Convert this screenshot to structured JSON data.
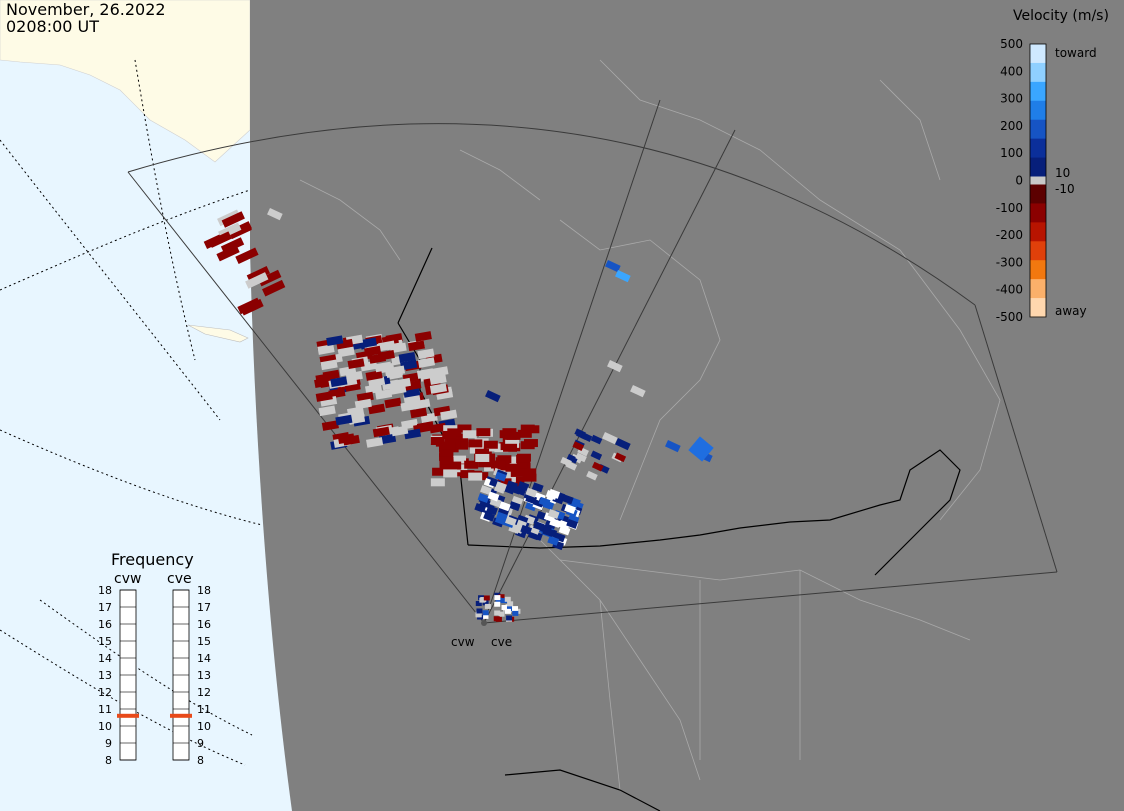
{
  "title": {
    "date": "November, 26.2022",
    "time": "0208:00 UT"
  },
  "velocity_scale": {
    "title": "Velocity (m/s)",
    "ticks": [
      "500",
      "400",
      "300",
      "200",
      "100",
      "0",
      "-100",
      "-200",
      "-300",
      "-400",
      "-500"
    ],
    "small_labels": {
      "pos": "10",
      "neg": "-10"
    },
    "end_labels": {
      "top": "toward",
      "bottom": "away"
    },
    "colors": {
      "toward": [
        "#cfe9ff",
        "#8fd0ff",
        "#3aa6ff",
        "#1f7ee8",
        "#1654c4",
        "#0b2f9a",
        "#071f7a"
      ],
      "near_zero": "#c8c8c8",
      "away": [
        "#5c0000",
        "#8b0000",
        "#b81400",
        "#e0400a",
        "#f2780f",
        "#fbb06a",
        "#ffd7ae"
      ]
    }
  },
  "frequency": {
    "title": "Frequency",
    "unit_hint": "",
    "ticks": [
      "18",
      "17",
      "16",
      "15",
      "14",
      "13",
      "12",
      "11",
      "10",
      "9",
      "8"
    ],
    "radars": [
      {
        "name": "cvw",
        "value_mhz": 10.6
      },
      {
        "name": "cve",
        "value_mhz": 10.6
      }
    ],
    "marker_color": "#e84a1a"
  },
  "radar_sites": [
    {
      "name": "cvw"
    },
    {
      "name": "cve"
    }
  ],
  "map": {
    "ocean_color": "#e8f6ff",
    "land_color": "#808080",
    "daylight_land_color": "#fefbe6",
    "boundary_color": "#000000",
    "gridline_color": "#000000"
  }
}
